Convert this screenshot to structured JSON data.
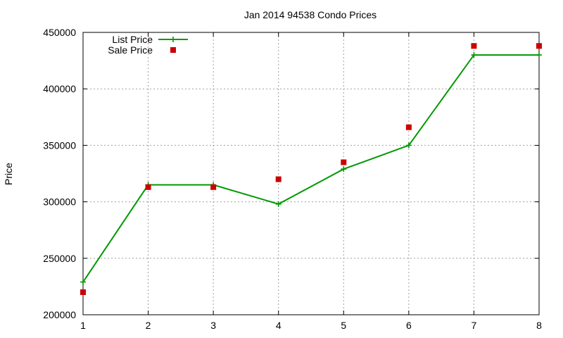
{
  "chart_data": {
    "type": "line",
    "title": "Jan 2014 94538 Condo Prices",
    "xlabel": "",
    "ylabel": "Price",
    "xlim": [
      1,
      8
    ],
    "ylim": [
      200000,
      450000
    ],
    "x_ticks": [
      1,
      2,
      3,
      4,
      5,
      6,
      7,
      8
    ],
    "y_ticks": [
      200000,
      250000,
      300000,
      350000,
      400000,
      450000
    ],
    "grid": true,
    "legend_position": "top-left",
    "series": [
      {
        "name": "List Price",
        "style": "line-with-plus-markers",
        "color": "#009900",
        "x": [
          1,
          2,
          3,
          4,
          5,
          6,
          7,
          8
        ],
        "y": [
          229000,
          315000,
          315000,
          298000,
          329000,
          350000,
          430000,
          430000
        ]
      },
      {
        "name": "Sale Price",
        "style": "square-markers",
        "color": "#cc0000",
        "x": [
          1,
          2,
          3,
          4,
          5,
          6,
          7,
          8
        ],
        "y": [
          220000,
          313000,
          313000,
          320000,
          335000,
          366000,
          438000,
          438000
        ]
      }
    ]
  }
}
